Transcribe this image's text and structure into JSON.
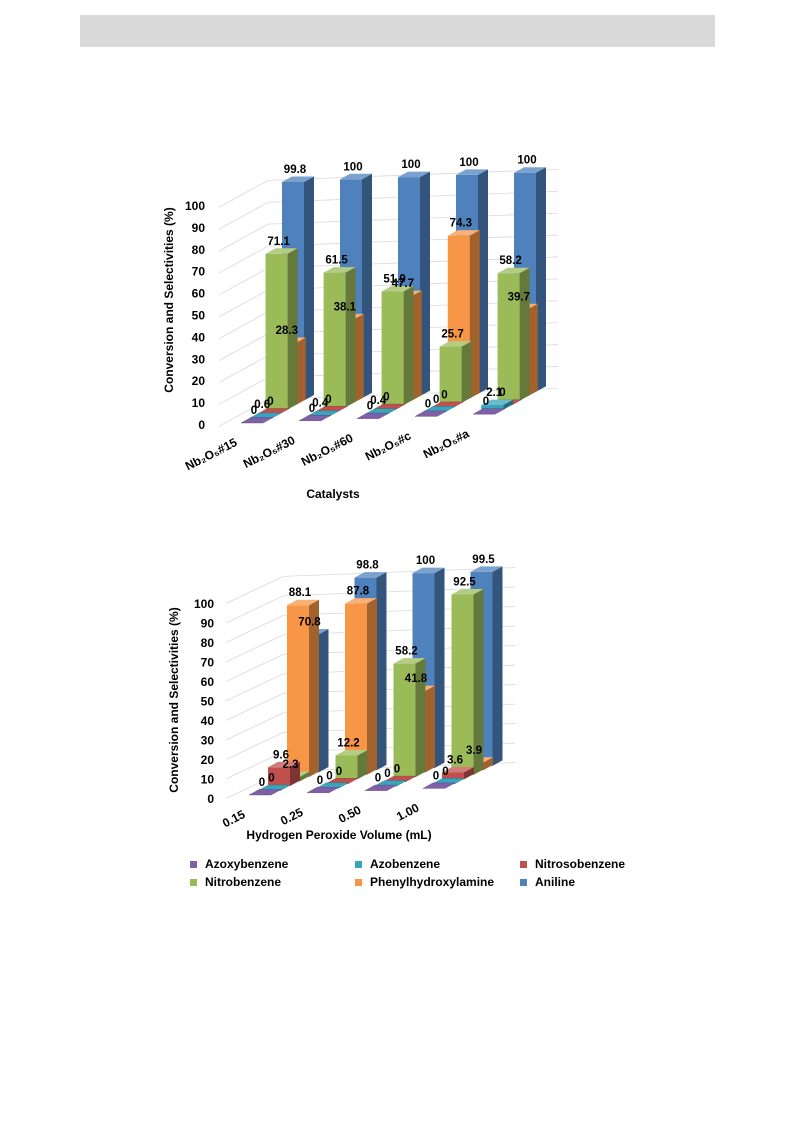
{
  "chart_data": [
    {
      "type": "bar",
      "subtype": "3d-clustered-bar",
      "ylabel": "Conversion and Selectivities (%)",
      "xlabel": "Catalysts",
      "ylim": [
        0,
        100
      ],
      "yticks": [
        "0",
        "10",
        "20",
        "30",
        "40",
        "50",
        "60",
        "70",
        "80",
        "90",
        "100"
      ],
      "categories": [
        "Nb₂O₅#15",
        "Nb₂O₅#30",
        "Nb₂O₅#60",
        "Nb₂O₅#c",
        "Nb₂O₅#a"
      ],
      "series": [
        {
          "name": "Azoxybenzene",
          "values": [
            0,
            0,
            0,
            0,
            0
          ]
        },
        {
          "name": "Azobenzene",
          "values": [
            0.6,
            0.4,
            0.4,
            0,
            2.1
          ]
        },
        {
          "name": "Nitrosobenzene",
          "values": [
            0,
            0,
            0,
            0,
            0
          ]
        },
        {
          "name": "Nitrobenzene",
          "values": [
            71.1,
            61.5,
            51.9,
            25.7,
            58.2
          ]
        },
        {
          "name": "Phenylhydroxylamine",
          "values": [
            28.3,
            38.1,
            47.7,
            74.3,
            39.7
          ]
        },
        {
          "name": "Aniline",
          "values": [
            99.8,
            100,
            100,
            100,
            100
          ]
        }
      ],
      "grid": true
    },
    {
      "type": "bar",
      "subtype": "3d-clustered-bar",
      "ylabel": "Conversion and Selectivities (%)",
      "xlabel": "Hydrogen Peroxide Volume (mL)",
      "ylim": [
        0,
        100
      ],
      "yticks": [
        "0",
        "10",
        "20",
        "30",
        "40",
        "50",
        "60",
        "70",
        "80",
        "90",
        "100"
      ],
      "categories": [
        "0.15",
        "0.25",
        "0.50",
        "1.00"
      ],
      "series": [
        {
          "name": "Azoxybenzene",
          "values": [
            0,
            0,
            0,
            0
          ]
        },
        {
          "name": "Azobenzene",
          "values": [
            0,
            0,
            0,
            0
          ]
        },
        {
          "name": "Nitrosobenzene",
          "values": [
            9.6,
            0,
            0,
            3.6
          ]
        },
        {
          "name": "Nitrobenzene",
          "values": [
            2.3,
            12.2,
            58.2,
            92.5
          ]
        },
        {
          "name": "Phenylhydroxylamine",
          "values": [
            88.1,
            87.8,
            41.8,
            3.9
          ]
        },
        {
          "name": "Aniline",
          "values": [
            70.8,
            98.8,
            100,
            99.5
          ]
        }
      ],
      "grid": true
    }
  ],
  "legend": {
    "items": [
      {
        "label": "Azoxybenzene",
        "color": "#7f60a8"
      },
      {
        "label": "Azobenzene",
        "color": "#35a6be"
      },
      {
        "label": "Nitrosobenzene",
        "color": "#c0504d"
      },
      {
        "label": "Nitrobenzene",
        "color": "#9bbb59"
      },
      {
        "label": "Phenylhydroxylamine",
        "color": "#f79646"
      },
      {
        "label": "Aniline",
        "color": "#4f81bd"
      }
    ]
  }
}
